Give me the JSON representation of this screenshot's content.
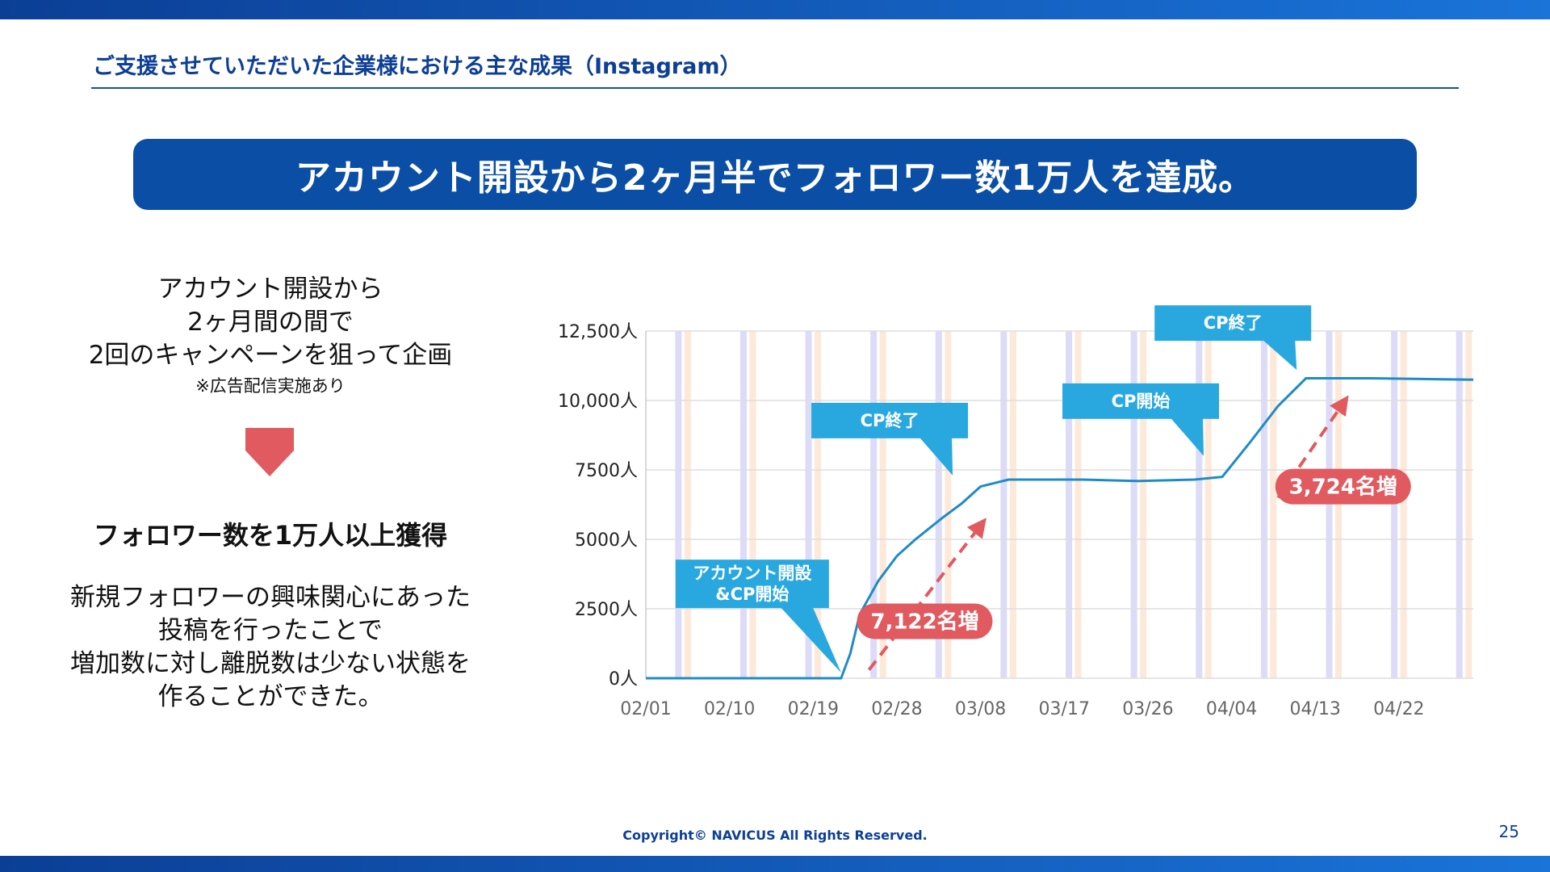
{
  "header": {
    "section_title": "ご支援させていただいた企業様における主な成果（Instagram）",
    "banner": "アカウント開設から2ヶ月半でフォロワー数1万人を達成。"
  },
  "left": {
    "intro": [
      "アカウント開設から",
      "2ヶ月間の間で",
      "2回のキャンペーンを狙って企画"
    ],
    "note": "※広告配信実施あり",
    "result": "フォロワー数を1万人以上獲得",
    "desc": [
      "新規フォロワーの興味関心にあった",
      "投稿を行ったことで",
      "増加数に対し離脱数は少ない状態を",
      "作ることができた。"
    ]
  },
  "colors": {
    "brand": "#0b4ea6",
    "line": "#1f8bc6",
    "callout": "#29a8e0",
    "accent_red": "#e05a5f",
    "stripe_blue": "#dcdcf8",
    "stripe_orange": "#fde9d9"
  },
  "chart_data": {
    "type": "line",
    "x_ticks": [
      "02/01",
      "02/10",
      "02/19",
      "02/28",
      "03/08",
      "03/17",
      "03/26",
      "04/04",
      "04/13",
      "04/22"
    ],
    "y_ticks": [
      "0人",
      "2500人",
      "5000人",
      "7500人",
      "10,000人",
      "12,500人"
    ],
    "ylim": [
      0,
      12500
    ],
    "x_range": [
      "2023-02-01",
      "2023-05-01"
    ],
    "grid": true,
    "series": [
      {
        "points": [
          [
            "2023-02-01",
            0
          ],
          [
            "2023-02-22",
            0
          ],
          [
            "2023-02-23",
            900
          ],
          [
            "2023-02-24",
            2300
          ],
          [
            "2023-02-26",
            3500
          ],
          [
            "2023-02-28",
            4400
          ],
          [
            "2023-03-02",
            5000
          ],
          [
            "2023-03-05",
            5800
          ],
          [
            "2023-03-07",
            6300
          ],
          [
            "2023-03-09",
            6900
          ],
          [
            "2023-03-12",
            7150
          ],
          [
            "2023-03-20",
            7150
          ],
          [
            "2023-03-26",
            7100
          ],
          [
            "2023-04-01",
            7150
          ],
          [
            "2023-04-04",
            7250
          ],
          [
            "2023-04-07",
            8500
          ],
          [
            "2023-04-10",
            9800
          ],
          [
            "2023-04-13",
            10800
          ],
          [
            "2023-04-20",
            10800
          ],
          [
            "2023-05-01",
            10750
          ]
        ]
      }
    ],
    "callouts": [
      {
        "text": [
          "アカウント開設",
          "&CP開始"
        ],
        "date": "2023-02-22",
        "value": 200
      },
      {
        "text": [
          "CP終了"
        ],
        "date": "2023-03-06",
        "value": 7300
      },
      {
        "text": [
          "CP開始"
        ],
        "date": "2023-04-02",
        "value": 8000
      },
      {
        "text": [
          "CP終了"
        ],
        "date": "2023-04-12",
        "value": 11100
      }
    ],
    "increase_labels": [
      {
        "text": "7,122名増",
        "date": "2023-03-03",
        "value": 2050
      },
      {
        "text": "3,724名増",
        "date": "2023-04-17",
        "value": 6900
      }
    ]
  }
}
